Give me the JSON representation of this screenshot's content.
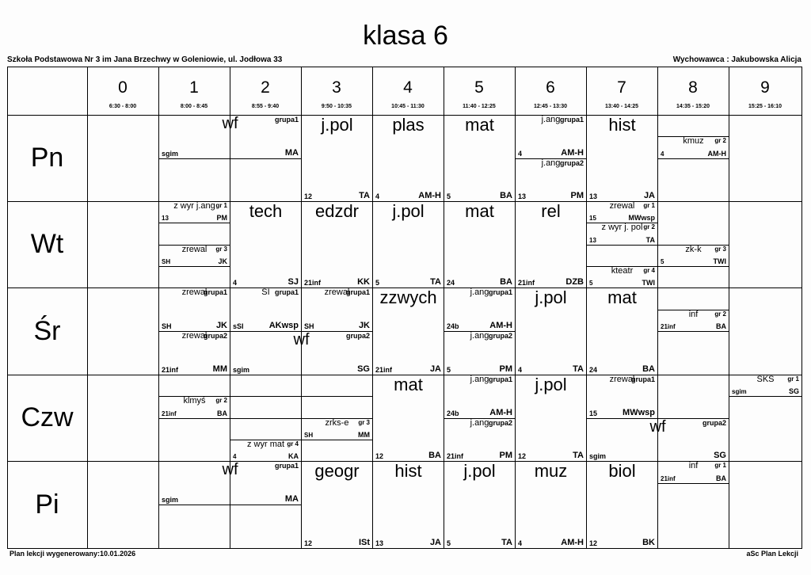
{
  "title": "klasa 6",
  "school": "Szkoła Podstawowa Nr 3 im Jana Brzechwy w Goleniowie, ul. Jodłowa 33",
  "form_teacher": "Wychowawca : Jakubowska Alicja",
  "periods": [
    {
      "number": "0",
      "time": "6:30 - 8:00"
    },
    {
      "number": "1",
      "time": "8:00 - 8:45"
    },
    {
      "number": "2",
      "time": "8:55 - 9:40"
    },
    {
      "number": "3",
      "time": "9:50 - 10:35"
    },
    {
      "number": "4",
      "time": "10:45 - 11:30"
    },
    {
      "number": "5",
      "time": "11:40 - 12:25"
    },
    {
      "number": "6",
      "time": "12:45 - 13:30"
    },
    {
      "number": "7",
      "time": "13:40 - 14:25"
    },
    {
      "number": "8",
      "time": "14:35 - 15:20"
    },
    {
      "number": "9",
      "time": "15:25 - 16:10"
    }
  ],
  "days": [
    {
      "name": "Pn",
      "periods": [
        [],
        [
          {
            "group": "grupa1",
            "subject": "wf",
            "room": "sgim",
            "teacher": "MA"
          }
        ],
        [],
        [
          {
            "subject": "j.pol",
            "room": "12",
            "teacher": "TA"
          }
        ],
        [
          {
            "subject": "plas",
            "room": "4",
            "teacher": "AM-H"
          }
        ],
        [
          {
            "subject": "mat",
            "room": "5",
            "teacher": "BA"
          }
        ],
        [
          {
            "group": "grupa1",
            "subject": "j.ang",
            "room": "4",
            "teacher": "AM-H"
          },
          {
            "group": "grupa2",
            "subject": "j.ang",
            "room": "13",
            "teacher": "PM"
          }
        ],
        [
          {
            "subject": "hist",
            "room": "13",
            "teacher": "JA"
          }
        ],
        [
          {
            "group": "gr 2",
            "subject": "kmuz",
            "room": "4",
            "teacher": "AM-H"
          }
        ],
        []
      ]
    },
    {
      "name": "Wt",
      "periods": [
        [],
        [
          {
            "group": "gr 1",
            "subject": "z wyr j.ang",
            "room": "13",
            "teacher": "PM"
          },
          {
            "group": "gr 3",
            "subject": "zrewal",
            "room": "SH",
            "teacher": "JK"
          }
        ],
        [
          {
            "subject": "tech",
            "room": "4",
            "teacher": "SJ"
          }
        ],
        [
          {
            "subject": "edzdr",
            "room": "21inf",
            "teacher": "KK"
          }
        ],
        [
          {
            "subject": "j.pol",
            "room": "5",
            "teacher": "TA"
          }
        ],
        [
          {
            "subject": "mat",
            "room": "24",
            "teacher": "BA"
          }
        ],
        [
          {
            "subject": "rel",
            "room": "21inf",
            "teacher": "DZB"
          }
        ],
        [
          {
            "group": "gr 1",
            "subject": "zrewal",
            "room": "15",
            "teacher": "MWwsp"
          },
          {
            "group": "gr 2",
            "subject": "z wyr j. pol",
            "room": "13",
            "teacher": "TA"
          },
          {
            "group": "gr 4",
            "subject": "kteatr",
            "room": "5",
            "teacher": "TWI"
          }
        ],
        [
          {
            "group": "gr 3",
            "subject": "zk-k",
            "room": "5",
            "teacher": "TWI"
          }
        ],
        []
      ]
    },
    {
      "name": "Śr",
      "periods": [
        [],
        [
          {
            "group": "grupa1",
            "subject": "zrewal",
            "room": "SH",
            "teacher": "JK"
          },
          {
            "group": "grupa2",
            "subject": "zrewal",
            "room": "21inf",
            "teacher": "MM"
          }
        ],
        [
          {
            "group": "grupa1",
            "subject": "SI",
            "room": "sSI",
            "teacher": "AKwsp"
          },
          {
            "group": "grupa2",
            "subject": "wf",
            "room": "sgim",
            "teacher": "SG"
          }
        ],
        [
          {
            "group": "grupa1",
            "subject": "zrewal",
            "room": "SH",
            "teacher": "JK"
          }
        ],
        [
          {
            "subject": "zzwych",
            "room": "21inf",
            "teacher": "JA"
          }
        ],
        [
          {
            "group": "grupa1",
            "subject": "j.ang",
            "room": "24b",
            "teacher": "AM-H"
          },
          {
            "group": "grupa2",
            "subject": "j.ang",
            "room": "5",
            "teacher": "PM"
          }
        ],
        [
          {
            "subject": "j.pol",
            "room": "4",
            "teacher": "TA"
          }
        ],
        [
          {
            "subject": "mat",
            "room": "24",
            "teacher": "BA"
          }
        ],
        [
          {
            "group": "gr 2",
            "subject": "inf",
            "room": "21inf",
            "teacher": "BA"
          }
        ],
        []
      ]
    },
    {
      "name": "Czw",
      "periods": [
        [],
        [
          {
            "group": "gr 2",
            "subject": "klmyś",
            "room": "21inf",
            "teacher": "BA"
          }
        ],
        [
          {
            "group": "gr 4",
            "subject": "z wyr mat",
            "room": "4",
            "teacher": "KA"
          }
        ],
        [
          {
            "group": "gr 3",
            "subject": "zrks-e",
            "room": "SH",
            "teacher": "MM"
          }
        ],
        [
          {
            "subject": "mat",
            "room": "12",
            "teacher": "BA"
          }
        ],
        [
          {
            "group": "grupa1",
            "subject": "j.ang",
            "room": "24b",
            "teacher": "AM-H"
          },
          {
            "group": "grupa2",
            "subject": "j.ang",
            "room": "21inf",
            "teacher": "PM"
          }
        ],
        [
          {
            "subject": "j.pol",
            "room": "12",
            "teacher": "TA"
          }
        ],
        [
          {
            "group": "grupa1",
            "subject": "zrewal",
            "room": "15",
            "teacher": "MWwsp"
          },
          {
            "group": "grupa2",
            "subject": "wf",
            "room": "sgim",
            "teacher": "SG"
          }
        ],
        [],
        [
          {
            "group": "gr 1",
            "subject": "SKS",
            "room": "sgim",
            "teacher": "SG"
          }
        ]
      ]
    },
    {
      "name": "Pi",
      "periods": [
        [],
        [
          {
            "group": "grupa1",
            "subject": "wf",
            "room": "sgim",
            "teacher": "MA"
          }
        ],
        [],
        [
          {
            "subject": "geogr",
            "room": "12",
            "teacher": "ISt"
          }
        ],
        [
          {
            "subject": "hist",
            "room": "13",
            "teacher": "JA"
          }
        ],
        [
          {
            "subject": "j.pol",
            "room": "5",
            "teacher": "TA"
          }
        ],
        [
          {
            "subject": "muz",
            "room": "4",
            "teacher": "AM-H"
          }
        ],
        [
          {
            "subject": "biol",
            "room": "12",
            "teacher": "BK"
          }
        ],
        [
          {
            "group": "gr 1",
            "subject": "inf",
            "room": "21inf",
            "teacher": "BA"
          }
        ],
        []
      ]
    }
  ],
  "footer": {
    "generated": "Plan lekcji wygenerowany:10.01.2026",
    "software": "aSc Plan Lekcji"
  }
}
